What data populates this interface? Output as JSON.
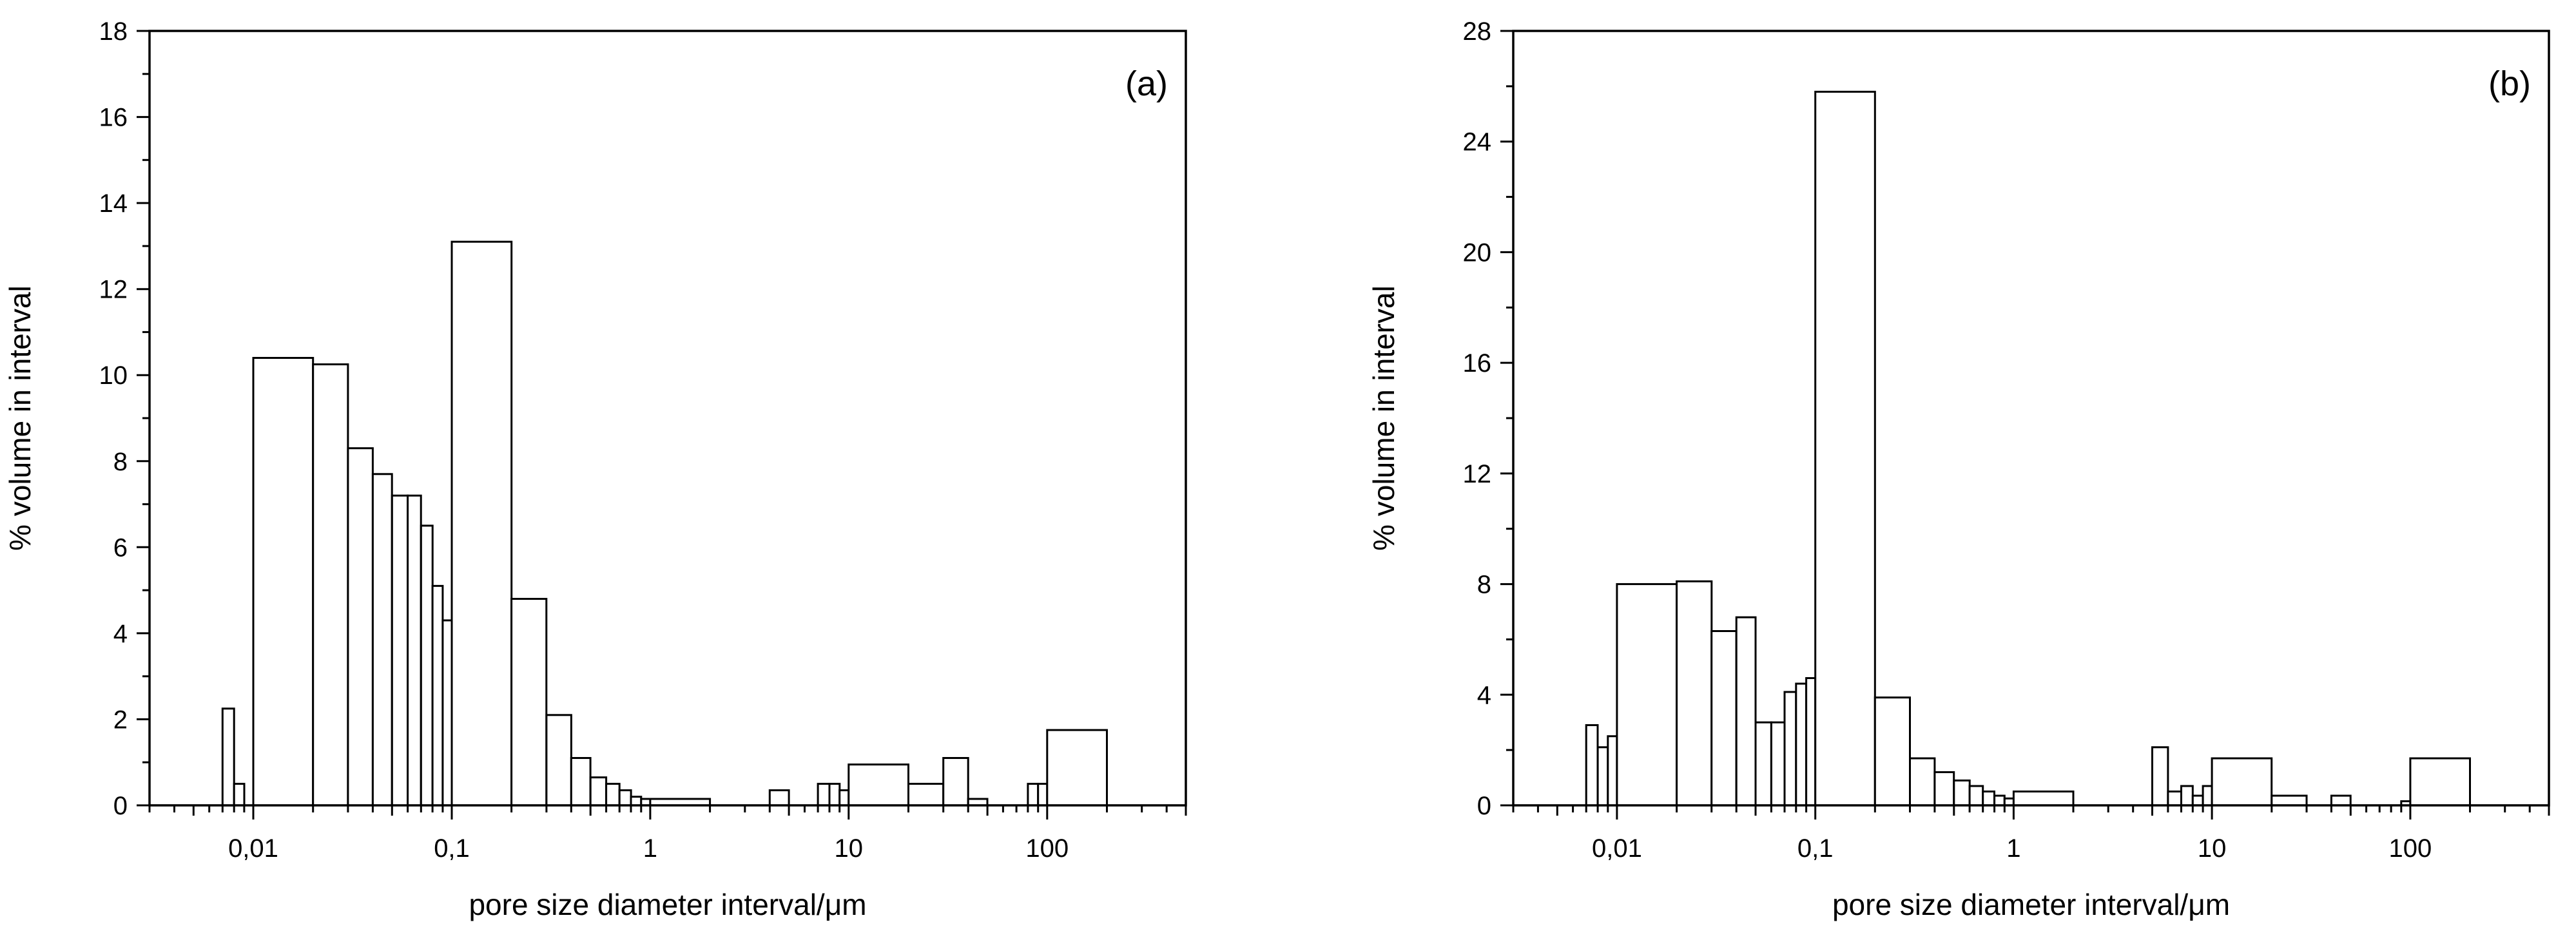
{
  "chart_data": [
    {
      "panel_label": "(a)",
      "type": "bar",
      "x_scale": "log",
      "xlabel": "pore size diameter interval/μm",
      "ylabel": "% volume in interval",
      "xlim": [
        0.003,
        500
      ],
      "ylim": [
        0,
        18
      ],
      "x_tick_labels": [
        "0,01",
        "0,1",
        "1",
        "10",
        "100"
      ],
      "y_tick_labels": [
        "0",
        "2",
        "4",
        "6",
        "8",
        "10",
        "12",
        "14",
        "16",
        "18"
      ],
      "grid": false,
      "bars": [
        {
          "x0": 0.007,
          "x1": 0.008,
          "y": 2.25
        },
        {
          "x0": 0.008,
          "x1": 0.009,
          "y": 0.5
        },
        {
          "x0": 0.01,
          "x1": 0.02,
          "y": 10.4
        },
        {
          "x0": 0.02,
          "x1": 0.03,
          "y": 10.25
        },
        {
          "x0": 0.03,
          "x1": 0.04,
          "y": 8.3
        },
        {
          "x0": 0.04,
          "x1": 0.05,
          "y": 7.7
        },
        {
          "x0": 0.05,
          "x1": 0.06,
          "y": 7.2
        },
        {
          "x0": 0.06,
          "x1": 0.07,
          "y": 7.2
        },
        {
          "x0": 0.07,
          "x1": 0.08,
          "y": 6.5
        },
        {
          "x0": 0.08,
          "x1": 0.09,
          "y": 5.1
        },
        {
          "x0": 0.09,
          "x1": 0.1,
          "y": 4.3
        },
        {
          "x0": 0.1,
          "x1": 0.2,
          "y": 13.1
        },
        {
          "x0": 0.2,
          "x1": 0.3,
          "y": 4.8
        },
        {
          "x0": 0.3,
          "x1": 0.4,
          "y": 2.1
        },
        {
          "x0": 0.4,
          "x1": 0.5,
          "y": 1.1
        },
        {
          "x0": 0.5,
          "x1": 0.6,
          "y": 0.65
        },
        {
          "x0": 0.6,
          "x1": 0.7,
          "y": 0.5
        },
        {
          "x0": 0.7,
          "x1": 0.8,
          "y": 0.35
        },
        {
          "x0": 0.8,
          "x1": 0.9,
          "y": 0.2
        },
        {
          "x0": 0.9,
          "x1": 1.0,
          "y": 0.15
        },
        {
          "x0": 1.0,
          "x1": 2.0,
          "y": 0.15
        },
        {
          "x0": 4.0,
          "x1": 5.0,
          "y": 0.35
        },
        {
          "x0": 7.0,
          "x1": 8.0,
          "y": 0.5
        },
        {
          "x0": 8.0,
          "x1": 9.0,
          "y": 0.5
        },
        {
          "x0": 9.0,
          "x1": 10.0,
          "y": 0.35
        },
        {
          "x0": 10.0,
          "x1": 20.0,
          "y": 0.95
        },
        {
          "x0": 20.0,
          "x1": 30.0,
          "y": 0.5
        },
        {
          "x0": 30.0,
          "x1": 40.0,
          "y": 1.1
        },
        {
          "x0": 40.0,
          "x1": 50.0,
          "y": 0.15
        },
        {
          "x0": 80.0,
          "x1": 90.0,
          "y": 0.5
        },
        {
          "x0": 90.0,
          "x1": 100.0,
          "y": 0.5
        },
        {
          "x0": 100.0,
          "x1": 200.0,
          "y": 1.75
        }
      ]
    },
    {
      "panel_label": "(b)",
      "type": "bar",
      "x_scale": "log",
      "xlabel": "pore size diameter interval/μm",
      "ylabel": "% volume in interval",
      "xlim": [
        0.003,
        500
      ],
      "ylim": [
        0,
        28
      ],
      "x_tick_labels": [
        "0,01",
        "0,1",
        "1",
        "10",
        "100"
      ],
      "y_tick_labels": [
        "0",
        "4",
        "8",
        "12",
        "16",
        "20",
        "24",
        "28"
      ],
      "grid": false,
      "bars": [
        {
          "x0": 0.007,
          "x1": 0.008,
          "y": 2.9
        },
        {
          "x0": 0.008,
          "x1": 0.009,
          "y": 2.1
        },
        {
          "x0": 0.009,
          "x1": 0.01,
          "y": 2.5
        },
        {
          "x0": 0.01,
          "x1": 0.02,
          "y": 8.0
        },
        {
          "x0": 0.02,
          "x1": 0.03,
          "y": 8.1
        },
        {
          "x0": 0.03,
          "x1": 0.04,
          "y": 6.3
        },
        {
          "x0": 0.04,
          "x1": 0.05,
          "y": 6.8
        },
        {
          "x0": 0.05,
          "x1": 0.06,
          "y": 3.0
        },
        {
          "x0": 0.06,
          "x1": 0.07,
          "y": 3.0
        },
        {
          "x0": 0.07,
          "x1": 0.08,
          "y": 4.1
        },
        {
          "x0": 0.08,
          "x1": 0.09,
          "y": 4.4
        },
        {
          "x0": 0.09,
          "x1": 0.1,
          "y": 4.6
        },
        {
          "x0": 0.1,
          "x1": 0.2,
          "y": 25.8
        },
        {
          "x0": 0.2,
          "x1": 0.3,
          "y": 3.9
        },
        {
          "x0": 0.3,
          "x1": 0.4,
          "y": 1.7
        },
        {
          "x0": 0.4,
          "x1": 0.5,
          "y": 1.2
        },
        {
          "x0": 0.5,
          "x1": 0.6,
          "y": 0.9
        },
        {
          "x0": 0.6,
          "x1": 0.7,
          "y": 0.7
        },
        {
          "x0": 0.7,
          "x1": 0.8,
          "y": 0.5
        },
        {
          "x0": 0.8,
          "x1": 0.9,
          "y": 0.35
        },
        {
          "x0": 0.9,
          "x1": 1.0,
          "y": 0.25
        },
        {
          "x0": 1.0,
          "x1": 2.0,
          "y": 0.5
        },
        {
          "x0": 5.0,
          "x1": 6.0,
          "y": 2.1
        },
        {
          "x0": 6.0,
          "x1": 7.0,
          "y": 0.5
        },
        {
          "x0": 7.0,
          "x1": 8.0,
          "y": 0.7
        },
        {
          "x0": 8.0,
          "x1": 9.0,
          "y": 0.35
        },
        {
          "x0": 9.0,
          "x1": 10.0,
          "y": 0.7
        },
        {
          "x0": 10.0,
          "x1": 20.0,
          "y": 1.7
        },
        {
          "x0": 20.0,
          "x1": 30.0,
          "y": 0.35
        },
        {
          "x0": 40.0,
          "x1": 50.0,
          "y": 0.35
        },
        {
          "x0": 90.0,
          "x1": 100.0,
          "y": 0.15
        },
        {
          "x0": 100.0,
          "x1": 200.0,
          "y": 1.7
        }
      ]
    }
  ]
}
